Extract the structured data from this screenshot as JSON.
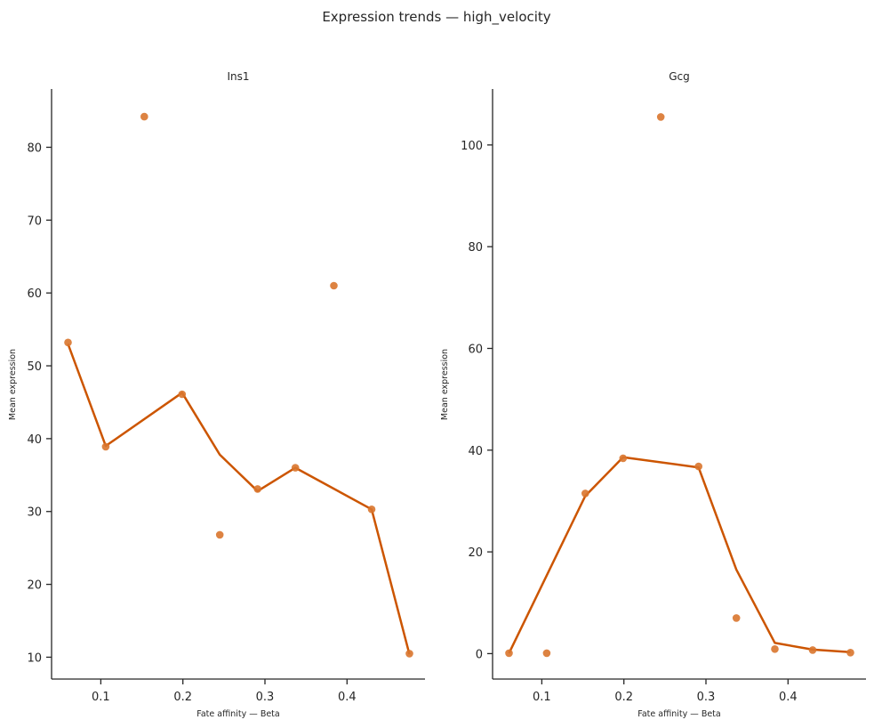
{
  "figure": {
    "title": "Expression trends — high_velocity"
  },
  "colors": {
    "line": "#cc5500",
    "points": "#d9762e"
  },
  "chart_data": [
    {
      "type": "scatter",
      "title": "Ins1",
      "xlabel": "Fate affinity — Beta",
      "ylabel": "Mean expression",
      "xlim": [
        0.04,
        0.495
      ],
      "ylim": [
        7,
        88
      ],
      "xticks": [
        0.1,
        0.2,
        0.3,
        0.4
      ],
      "yticks": [
        10,
        20,
        30,
        40,
        50,
        60,
        70,
        80
      ],
      "xtick_labels": [
        "0.1",
        "0.2",
        "0.3",
        "0.4"
      ],
      "ytick_labels": [
        "10",
        "20",
        "30",
        "40",
        "50",
        "60",
        "70",
        "80"
      ],
      "points": [
        {
          "x": 0.06,
          "y": 53.2
        },
        {
          "x": 0.106,
          "y": 38.9
        },
        {
          "x": 0.153,
          "y": 84.2
        },
        {
          "x": 0.199,
          "y": 46.1
        },
        {
          "x": 0.245,
          "y": 26.8
        },
        {
          "x": 0.291,
          "y": 33.1
        },
        {
          "x": 0.337,
          "y": 36.0
        },
        {
          "x": 0.384,
          "y": 61.0
        },
        {
          "x": 0.43,
          "y": 30.3
        },
        {
          "x": 0.476,
          "y": 10.5
        }
      ],
      "trend": [
        {
          "x": 0.06,
          "y": 53.0
        },
        {
          "x": 0.106,
          "y": 39.0
        },
        {
          "x": 0.199,
          "y": 46.3
        },
        {
          "x": 0.245,
          "y": 37.8
        },
        {
          "x": 0.291,
          "y": 32.8
        },
        {
          "x": 0.337,
          "y": 36.0
        },
        {
          "x": 0.43,
          "y": 30.3
        },
        {
          "x": 0.476,
          "y": 10.4
        }
      ]
    },
    {
      "type": "scatter",
      "title": "Gcg",
      "xlabel": "Fate affinity — Beta",
      "ylabel": "Mean expression",
      "xlim": [
        0.04,
        0.495
      ],
      "ylim": [
        -5,
        111
      ],
      "xticks": [
        0.1,
        0.2,
        0.3,
        0.4
      ],
      "yticks": [
        0,
        20,
        40,
        60,
        80,
        100
      ],
      "xtick_labels": [
        "0.1",
        "0.2",
        "0.3",
        "0.4"
      ],
      "ytick_labels": [
        "0",
        "20",
        "40",
        "60",
        "80",
        "100"
      ],
      "points": [
        {
          "x": 0.06,
          "y": 0.1
        },
        {
          "x": 0.106,
          "y": 0.1
        },
        {
          "x": 0.153,
          "y": 31.5
        },
        {
          "x": 0.199,
          "y": 38.4
        },
        {
          "x": 0.245,
          "y": 105.5
        },
        {
          "x": 0.291,
          "y": 36.8
        },
        {
          "x": 0.337,
          "y": 7.0
        },
        {
          "x": 0.384,
          "y": 0.9
        },
        {
          "x": 0.43,
          "y": 0.7
        },
        {
          "x": 0.476,
          "y": 0.2
        }
      ],
      "trend": [
        {
          "x": 0.06,
          "y": 0.1
        },
        {
          "x": 0.153,
          "y": 31.0
        },
        {
          "x": 0.199,
          "y": 38.6
        },
        {
          "x": 0.291,
          "y": 36.6
        },
        {
          "x": 0.337,
          "y": 16.5
        },
        {
          "x": 0.384,
          "y": 2.1
        },
        {
          "x": 0.43,
          "y": 0.8
        },
        {
          "x": 0.476,
          "y": 0.3
        }
      ]
    }
  ]
}
